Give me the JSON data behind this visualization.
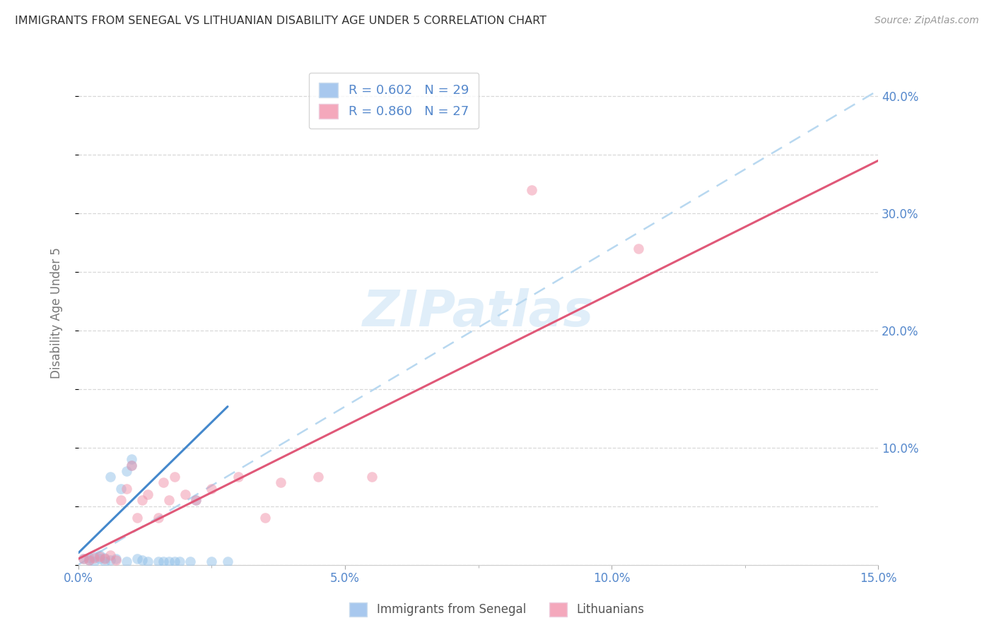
{
  "title": "IMMIGRANTS FROM SENEGAL VS LITHUANIAN DISABILITY AGE UNDER 5 CORRELATION CHART",
  "source": "Source: ZipAtlas.com",
  "ylabel": "Disability Age Under 5",
  "xlim": [
    0.0,
    0.15
  ],
  "ylim": [
    0.0,
    0.43
  ],
  "yticks": [
    0.0,
    0.1,
    0.2,
    0.3,
    0.4
  ],
  "xticks": [
    0.0,
    0.05,
    0.1,
    0.15
  ],
  "legend_entries": [
    {
      "label": "R = 0.602   N = 29",
      "color": "#a8c8ee"
    },
    {
      "label": "R = 0.860   N = 27",
      "color": "#f4a8bc"
    }
  ],
  "legend_labels": [
    "Immigrants from Senegal",
    "Lithuanians"
  ],
  "watermark": "ZIPatlas",
  "blue_scatter_x": [
    0.001,
    0.002,
    0.002,
    0.003,
    0.003,
    0.004,
    0.004,
    0.005,
    0.005,
    0.006,
    0.006,
    0.007,
    0.008,
    0.009,
    0.009,
    0.01,
    0.01,
    0.011,
    0.012,
    0.013,
    0.015,
    0.016,
    0.017,
    0.018,
    0.019,
    0.021,
    0.022,
    0.025,
    0.028
  ],
  "blue_scatter_y": [
    0.005,
    0.004,
    0.006,
    0.003,
    0.007,
    0.005,
    0.008,
    0.006,
    0.003,
    0.004,
    0.075,
    0.005,
    0.065,
    0.003,
    0.08,
    0.09,
    0.085,
    0.005,
    0.004,
    0.003,
    0.003,
    0.003,
    0.003,
    0.003,
    0.003,
    0.003,
    0.055,
    0.003,
    0.003
  ],
  "pink_scatter_x": [
    0.001,
    0.002,
    0.003,
    0.004,
    0.005,
    0.006,
    0.007,
    0.008,
    0.009,
    0.01,
    0.011,
    0.012,
    0.013,
    0.015,
    0.016,
    0.017,
    0.018,
    0.02,
    0.022,
    0.025,
    0.03,
    0.035,
    0.038,
    0.045,
    0.055,
    0.085,
    0.105
  ],
  "pink_scatter_y": [
    0.005,
    0.004,
    0.006,
    0.007,
    0.005,
    0.008,
    0.004,
    0.055,
    0.065,
    0.085,
    0.04,
    0.055,
    0.06,
    0.04,
    0.07,
    0.055,
    0.075,
    0.06,
    0.055,
    0.065,
    0.075,
    0.04,
    0.07,
    0.075,
    0.075,
    0.32,
    0.27
  ],
  "blue_line_x": [
    0.0,
    0.028
  ],
  "blue_line_y": [
    0.01,
    0.135
  ],
  "pink_line_x": [
    0.0,
    0.15
  ],
  "pink_line_y": [
    0.005,
    0.345
  ],
  "blue_dash_line_x": [
    0.0,
    0.15
  ],
  "blue_dash_line_y": [
    0.0,
    0.405
  ],
  "scatter_size": 110,
  "scatter_alpha": 0.5,
  "blue_color": "#90c0e8",
  "pink_color": "#f090a8",
  "blue_line_color": "#4488cc",
  "pink_line_color": "#e05878",
  "blue_dash_color": "#b8d8f0",
  "background_color": "#ffffff",
  "grid_color": "#d8d8d8",
  "title_color": "#333333",
  "tick_label_color": "#5588cc"
}
